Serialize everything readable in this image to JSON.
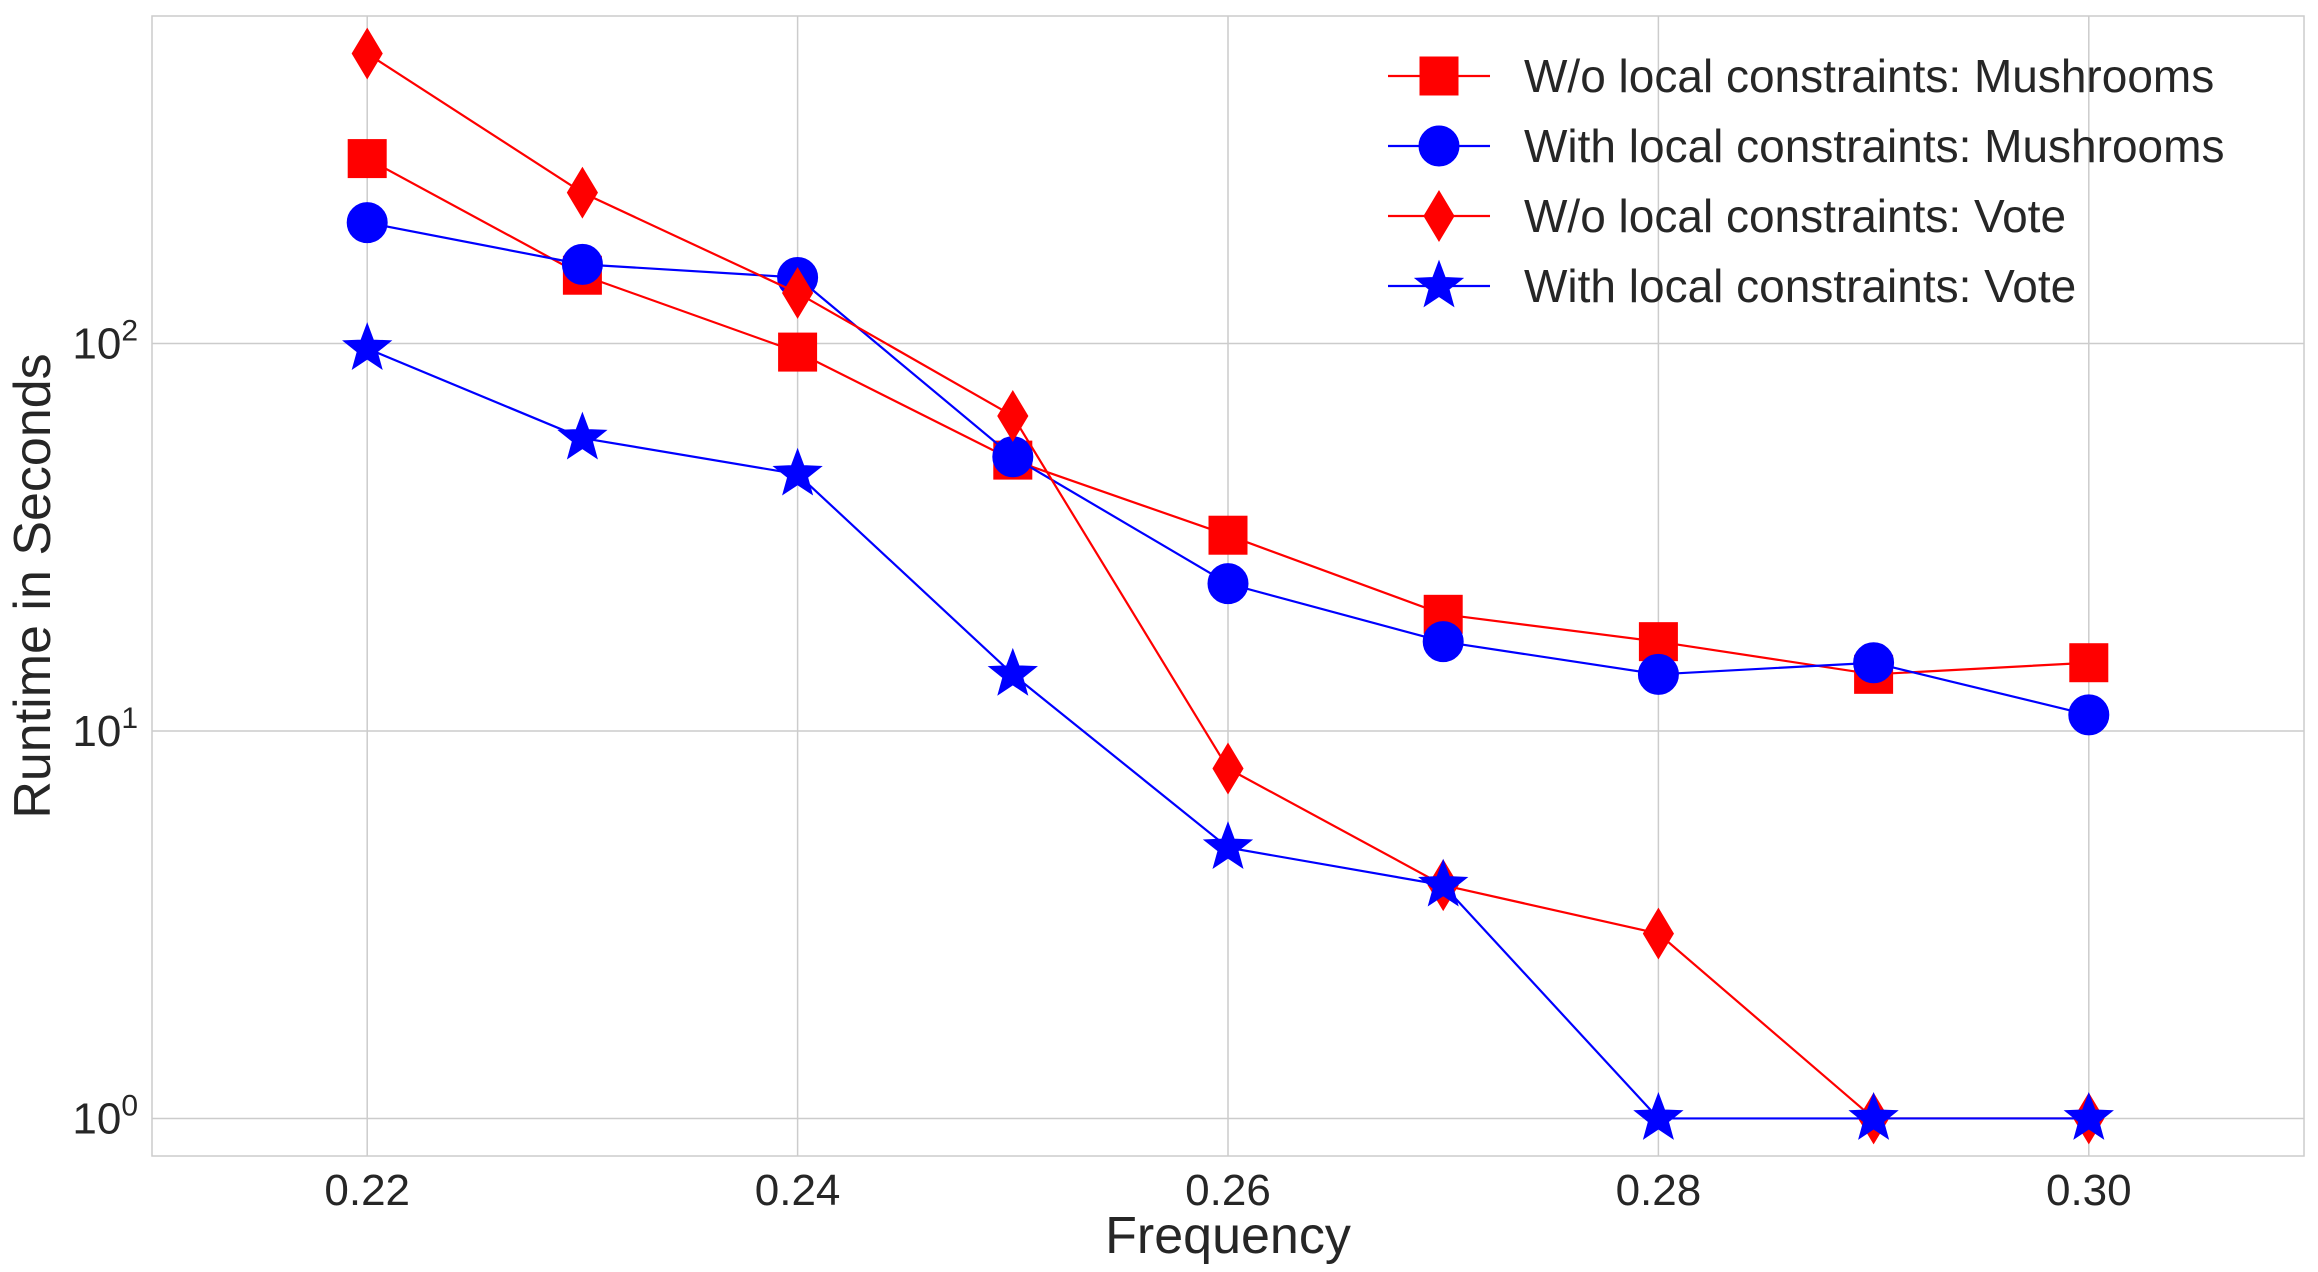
{
  "chart_data": {
    "type": "line",
    "xlabel": "Frequency",
    "ylabel": "Runtime in Seconds",
    "xlim": [
      0.21,
      0.31
    ],
    "ylim": [
      0.8,
      700
    ],
    "yscale": "log",
    "grid": true,
    "legend_position": "top-right",
    "x_ticks": [
      {
        "value": 0.22,
        "label": "0.22"
      },
      {
        "value": 0.24,
        "label": "0.24"
      },
      {
        "value": 0.26,
        "label": "0.26"
      },
      {
        "value": 0.28,
        "label": "0.28"
      },
      {
        "value": 0.3,
        "label": "0.30"
      }
    ],
    "y_ticks": [
      {
        "value": 1,
        "base": "10",
        "exp": "0"
      },
      {
        "value": 10,
        "base": "10",
        "exp": "1"
      },
      {
        "value": 100,
        "base": "10",
        "exp": "2"
      }
    ],
    "x": [
      0.22,
      0.23,
      0.24,
      0.25,
      0.26,
      0.27,
      0.28,
      0.29,
      0.3
    ],
    "series": [
      {
        "name": "W/o local constraints: Mushrooms",
        "color": "#ff0000",
        "marker": "square",
        "values": [
          300,
          150,
          95,
          50,
          32,
          20,
          17,
          14,
          15
        ]
      },
      {
        "name": "With local constraints: Mushrooms",
        "color": "#0000ff",
        "marker": "circle",
        "values": [
          205,
          160,
          148,
          51,
          24,
          17,
          14,
          15,
          11
        ]
      },
      {
        "name": "W/o local constraints: Vote",
        "color": "#ff0000",
        "marker": "diamond",
        "values": [
          560,
          245,
          135,
          65,
          8,
          4,
          3,
          1,
          1
        ]
      },
      {
        "name": "With local constraints: Vote",
        "color": "#0000ff",
        "marker": "star",
        "values": [
          97,
          57,
          46,
          14,
          5,
          4,
          1,
          1,
          1
        ]
      }
    ]
  }
}
